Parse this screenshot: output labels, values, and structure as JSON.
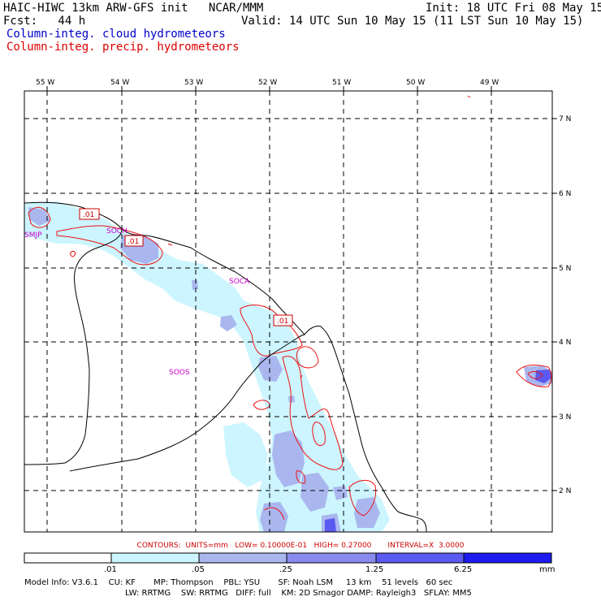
{
  "header": {
    "title": "HAIC-HIWC 13km ARW-GFS init   NCAR/MMM",
    "init": "Init: 18 UTC Fri 08 May 15",
    "fcst": "Fcst:   44 h",
    "valid": "Valid: 14 UTC Sun 10 May 15 (11 LST Sun 10 May 15)",
    "field_blue": "Column-integ. cloud hydrometeors",
    "field_red": "Column-integ. precip. hydrometeors"
  },
  "map": {
    "lon_labels": [
      "55 W",
      "54 W",
      "53 W",
      "52 W",
      "51 W",
      "50 W",
      "49 W"
    ],
    "lat_labels": [
      "7 N",
      "6 N",
      "5 N",
      "4 N",
      "3 N",
      "2 N"
    ],
    "stations": [
      "SMJP",
      "SOCA",
      "SOOS",
      "SOCH"
    ],
    "contour_labels": [
      ".01",
      ".01",
      ".01"
    ]
  },
  "contour_info": "CONTOURS:  UNITS=mm   LOW= 0.10000E-01   HIGH= 0.27000       INTERVAL=X  3.0000",
  "colorbar": {
    "labels": [
      ".01",
      ".05",
      ".25",
      "1.25",
      "6.25"
    ],
    "unit": "mm",
    "colors": [
      "#ffffff",
      "#ccf5ff",
      "#aab7ef",
      "#8a8aee",
      "#5a5af0",
      "#1c1cf0"
    ]
  },
  "footer": {
    "line1": "Model Info: V3.6.1    CU: KF       MP: Thompson    PBL: YSU       SF: Noah LSM     13 km    51 levels   60 sec",
    "line2": "LW: RRTMG    SW: RRTMG   DIFF: full    KM: 2D Smagor DAMP: Rayleigh3   SFLAY: MM5"
  }
}
